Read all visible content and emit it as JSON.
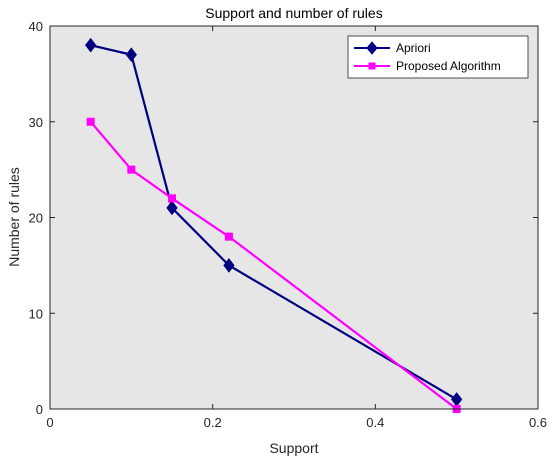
{
  "chart_data": {
    "type": "line",
    "title": "Support and number of rules",
    "xlabel": "Support",
    "ylabel": "Number of rules",
    "xlim": [
      0,
      0.6
    ],
    "ylim": [
      0,
      40
    ],
    "xticks": [
      0,
      0.2,
      0.4,
      0.6
    ],
    "yticks": [
      0,
      10,
      20,
      30,
      40
    ],
    "xtick_labels": [
      "0",
      "0.2",
      "0.4",
      "0.6"
    ],
    "ytick_labels": [
      "0",
      "10",
      "20",
      "30",
      "40"
    ],
    "grid": false,
    "legend_position": "top-right",
    "background": "#e6e6e6",
    "series": [
      {
        "name": "Apriori",
        "color": "#000080",
        "marker": "diamond",
        "x": [
          0.05,
          0.1,
          0.15,
          0.22,
          0.5
        ],
        "y": [
          38,
          37,
          21,
          15,
          1
        ]
      },
      {
        "name": "Proposed Algorithm",
        "color": "#ff00ff",
        "marker": "square",
        "x": [
          0.05,
          0.1,
          0.15,
          0.22,
          0.5
        ],
        "y": [
          30,
          25,
          22,
          18,
          0
        ]
      }
    ]
  }
}
